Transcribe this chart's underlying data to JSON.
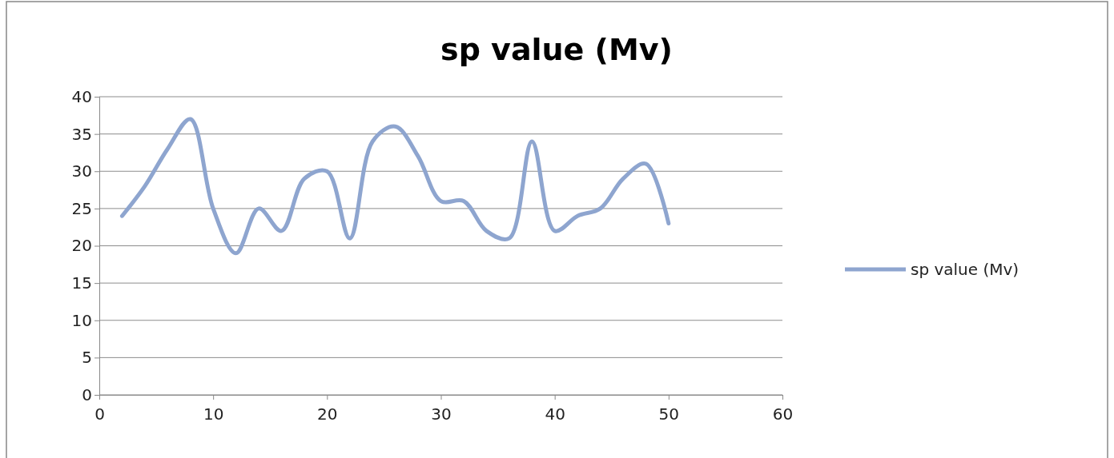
{
  "chart_data": {
    "type": "line",
    "title": "sp value (Mv)",
    "x": [
      2,
      4,
      6,
      8,
      10,
      12,
      14,
      16,
      18,
      20,
      22,
      24,
      26,
      28,
      30,
      32,
      34,
      36,
      38,
      40,
      42,
      44,
      46,
      48,
      50
    ],
    "series": [
      {
        "name": "sp value (Mv)",
        "color": "#8ea5cf",
        "values": [
          24,
          28,
          33,
          37,
          25,
          19,
          25,
          22,
          29,
          30,
          21,
          34,
          36,
          32,
          26,
          26,
          22,
          21,
          34,
          22,
          24,
          25,
          29,
          31,
          23
        ]
      }
    ],
    "xlim": [
      0,
      60
    ],
    "xticks": [
      0,
      10,
      20,
      30,
      40,
      50,
      60
    ],
    "ylim": [
      0,
      40
    ],
    "yticks": [
      0,
      5,
      10,
      15,
      20,
      25,
      30,
      35,
      40
    ],
    "grid": "y",
    "legend": "right",
    "marker": "none",
    "line_style": "solid"
  }
}
